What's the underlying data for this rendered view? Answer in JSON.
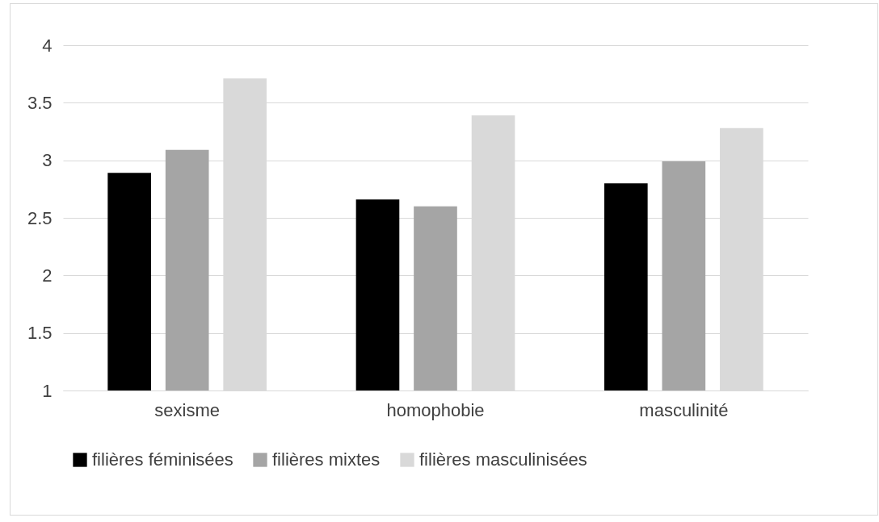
{
  "chart_data": {
    "type": "bar",
    "categories": [
      "sexisme",
      "homophobie",
      "masculinité"
    ],
    "series": [
      {
        "name": "filières féminisées",
        "color": "#000000",
        "values": [
          2.89,
          2.66,
          2.8
        ]
      },
      {
        "name": "filières mixtes",
        "color": "#a5a5a5",
        "values": [
          3.09,
          2.6,
          2.99
        ]
      },
      {
        "name": "filières masculinisées",
        "color": "#d9d9d9",
        "values": [
          3.71,
          3.39,
          3.28
        ]
      }
    ],
    "ylim": [
      1,
      4
    ],
    "yticks": [
      1,
      1.5,
      2,
      2.5,
      3,
      3.5,
      4
    ],
    "grid": "y",
    "legend": "bottom"
  }
}
